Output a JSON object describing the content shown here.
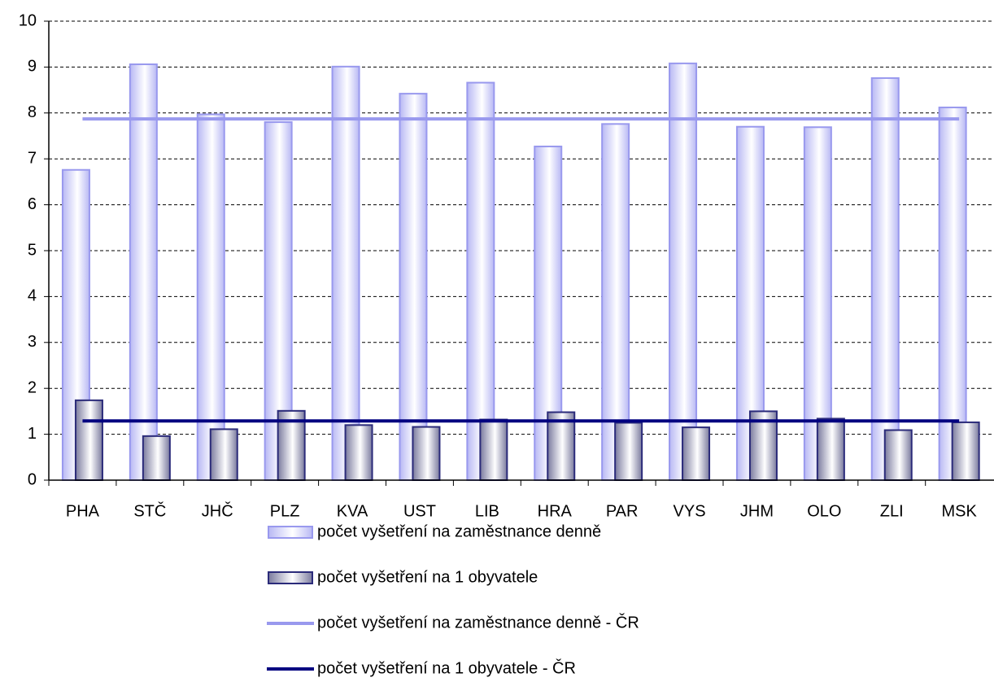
{
  "chart_data": {
    "type": "bar",
    "categories": [
      "PHA",
      "STČ",
      "JHČ",
      "PLZ",
      "KVA",
      "UST",
      "LIB",
      "HRA",
      "PAR",
      "VYS",
      "JHM",
      "OLO",
      "ZLI",
      "MSK"
    ],
    "series": [
      {
        "name": "počet vyšetření na zaměstnance denně",
        "type": "bar",
        "color": "#b8b8f4",
        "values": [
          6.76,
          9.06,
          7.97,
          7.8,
          9.01,
          8.42,
          8.66,
          7.27,
          7.76,
          9.08,
          7.7,
          7.69,
          8.76,
          8.12
        ]
      },
      {
        "name": "počet vyšetření na 1 obyvatele",
        "type": "bar",
        "color": "#7a7a9e",
        "values": [
          1.74,
          0.96,
          1.11,
          1.51,
          1.2,
          1.16,
          1.32,
          1.48,
          1.25,
          1.15,
          1.5,
          1.34,
          1.09,
          1.26
        ]
      },
      {
        "name": "počet vyšetření na zaměstnance denně - ČR",
        "type": "line",
        "color": "#9999ee",
        "values": [
          7.87,
          7.87,
          7.87,
          7.87,
          7.87,
          7.87,
          7.87,
          7.87,
          7.87,
          7.87,
          7.87,
          7.87,
          7.87,
          7.87
        ]
      },
      {
        "name": "počet vyšetření na 1 obyvatele - ČR",
        "type": "line",
        "color": "#000080",
        "values": [
          1.29,
          1.29,
          1.29,
          1.29,
          1.29,
          1.29,
          1.29,
          1.29,
          1.29,
          1.29,
          1.29,
          1.29,
          1.29,
          1.29
        ]
      }
    ],
    "ylim": [
      0,
      10
    ],
    "yticks": [
      0,
      1,
      2,
      3,
      4,
      5,
      6,
      7,
      8,
      9,
      10
    ],
    "grid": true,
    "legend": "bottom"
  }
}
